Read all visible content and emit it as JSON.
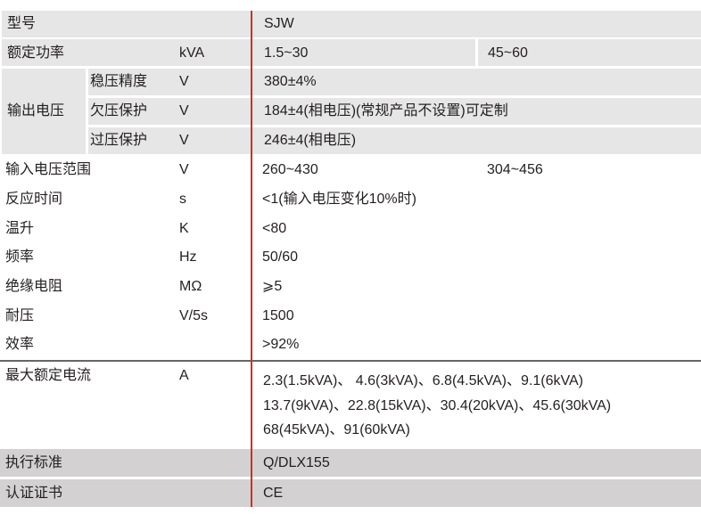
{
  "rows": [
    {
      "label": "型号",
      "unit": "",
      "value": "SJW"
    },
    {
      "label": "额定功率",
      "unit": "kVA",
      "value": "1.5~30",
      "second_value": "45~60"
    },
    {
      "label": "输入电压范围",
      "unit": "V",
      "value": "260~430",
      "second_value": "304~456"
    },
    {
      "label": "反应时间",
      "unit": "s",
      "value": "<1(输入电压变化10%时)"
    },
    {
      "label": "温升",
      "unit": "K",
      "value": "<80"
    },
    {
      "label": "频率",
      "unit": "Hz",
      "value": "50/60"
    },
    {
      "label": "绝缘电阻",
      "unit": "MΩ",
      "value": "⩾5"
    },
    {
      "label": "耐压",
      "unit": "V/5s",
      "value": "1500"
    },
    {
      "label": "效率",
      "unit": "",
      "value": ">92%"
    },
    {
      "label": "执行标准",
      "unit": "",
      "value": "Q/DLX155"
    },
    {
      "label": "认证证书",
      "unit": "",
      "value": "CE"
    }
  ],
  "output_voltage": {
    "label": "输出电压",
    "sub": [
      {
        "label": "稳压精度",
        "unit": "V",
        "value": "380±4%"
      },
      {
        "label": "欠压保护",
        "unit": "V",
        "value": "184±4(相电压)(常规产品不设置)可定制"
      },
      {
        "label": "过压保护",
        "unit": "V",
        "value": "246±4(相电压)"
      }
    ]
  },
  "max_current": {
    "label": "最大额定电流",
    "unit": "A",
    "lines": [
      "2.3(1.5kVA)、 4.6(3kVA)、6.8(4.5kVA)、9.1(6kVA)",
      "13.7(9kVA)、22.8(15kVA)、30.4(20kVA)、45.6(30kVA)",
      "68(45kVA)、91(60kVA)"
    ]
  },
  "colors": {
    "header_gray": "#e6e6e6",
    "footer_gray": "#d3d1d2",
    "divider_red": "#c8302c"
  }
}
